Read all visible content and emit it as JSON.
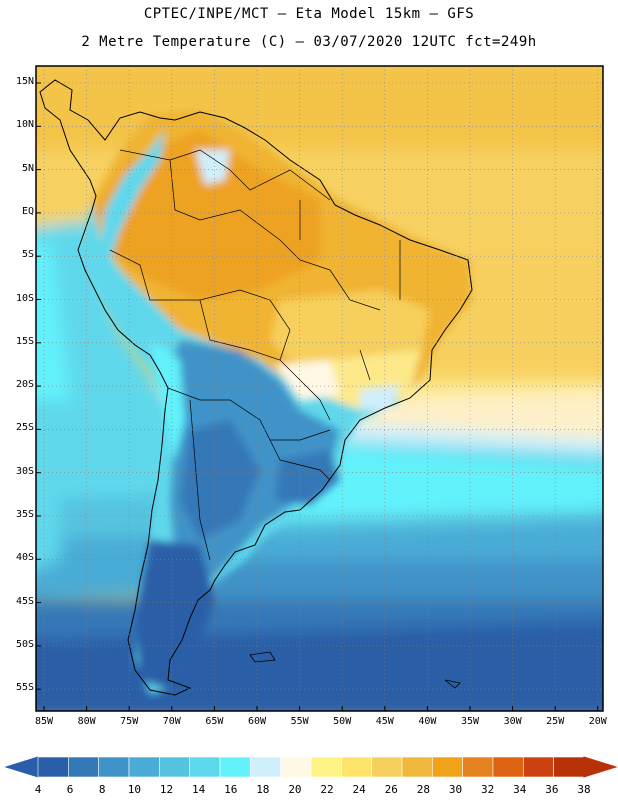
{
  "header": {
    "line1": "CPTEC/INPE/MCT –  Eta Model 15km – GFS",
    "line2": "2 Metre Temperature (C) – 03/07/2020 12UTC fct=249h"
  },
  "map": {
    "region": "South America",
    "lat_labels": [
      "15N",
      "10N",
      "5N",
      "EQ",
      "5S",
      "10S",
      "15S",
      "20S",
      "25S",
      "30S",
      "35S",
      "40S",
      "45S",
      "50S",
      "55S"
    ],
    "lon_labels": [
      "85W",
      "80W",
      "75W",
      "70W",
      "65W",
      "60W",
      "55W",
      "50W",
      "45W",
      "40W",
      "35W",
      "30W",
      "25W",
      "20W"
    ]
  },
  "colorbar": {
    "labels": [
      "4",
      "6",
      "8",
      "10",
      "12",
      "14",
      "16",
      "18",
      "20",
      "22",
      "24",
      "26",
      "28",
      "30",
      "32",
      "34",
      "36",
      "38"
    ],
    "colors": [
      "#2a5ea8",
      "#3478b8",
      "#3f93c8",
      "#4aacd6",
      "#55c3e0",
      "#5ed8ec",
      "#62f2fc",
      "#cfeffc",
      "#fff8e4",
      "#fef486",
      "#fde36a",
      "#f6cf5c",
      "#eeb93c",
      "#f0a218",
      "#e48220",
      "#dd6212",
      "#cb4210",
      "#b83208"
    ]
  }
}
